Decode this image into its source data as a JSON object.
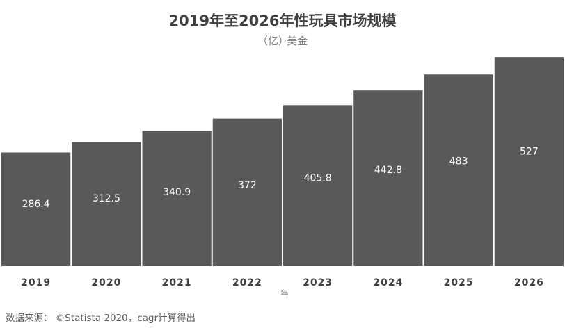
{
  "title": "2019年至2026年性玩具市场规模",
  "subtitle": "（亿）·美金",
  "source": "数据来源：  ©Statista 2020，cagr计算得出",
  "colors": {
    "bar": "#595959",
    "bar_label": "#ffffff",
    "text": "#404040"
  },
  "chart_data": {
    "type": "bar",
    "title": "2019年至2026年性玩具市场规模",
    "subtitle": "（亿）·美金",
    "xlabel": "年",
    "ylabel": "",
    "categories": [
      "2019",
      "2020",
      "2021",
      "2022",
      "2023",
      "2024",
      "2025",
      "2026"
    ],
    "values": [
      286.4,
      312.5,
      340.9,
      372,
      405.8,
      442.8,
      483,
      527
    ],
    "value_labels": [
      "286.4",
      "312.5",
      "340.9",
      "372",
      "405.8",
      "442.8",
      "483",
      "527"
    ],
    "ylim": [
      0,
      550
    ],
    "grid": false,
    "legend": "none"
  }
}
